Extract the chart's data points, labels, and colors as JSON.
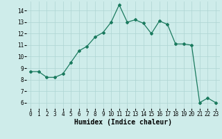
{
  "xlabel": "Humidex (Indice chaleur)",
  "x": [
    0,
    1,
    2,
    3,
    4,
    5,
    6,
    7,
    8,
    9,
    10,
    11,
    12,
    13,
    14,
    15,
    16,
    17,
    18,
    19,
    20,
    21,
    22,
    23
  ],
  "y": [
    8.7,
    8.7,
    8.2,
    8.2,
    8.5,
    9.5,
    10.5,
    10.9,
    11.7,
    12.1,
    13.0,
    14.5,
    13.0,
    13.2,
    12.9,
    12.0,
    13.1,
    12.8,
    11.1,
    11.1,
    11.0,
    6.0,
    6.4,
    6.0
  ],
  "line_color": "#1a7a5e",
  "bg_color": "#ceecea",
  "grid_color": "#aed4d2",
  "ylim": [
    5.5,
    14.8
  ],
  "xlim": [
    -0.5,
    23.5
  ],
  "yticks": [
    6,
    7,
    8,
    9,
    10,
    11,
    12,
    13,
    14
  ],
  "xticks": [
    0,
    1,
    2,
    3,
    4,
    5,
    6,
    7,
    8,
    9,
    10,
    11,
    12,
    13,
    14,
    15,
    16,
    17,
    18,
    19,
    20,
    21,
    22,
    23
  ],
  "tick_fontsize": 5.5,
  "xlabel_fontsize": 7,
  "marker": "D",
  "marker_size": 2.0,
  "linewidth": 0.9
}
